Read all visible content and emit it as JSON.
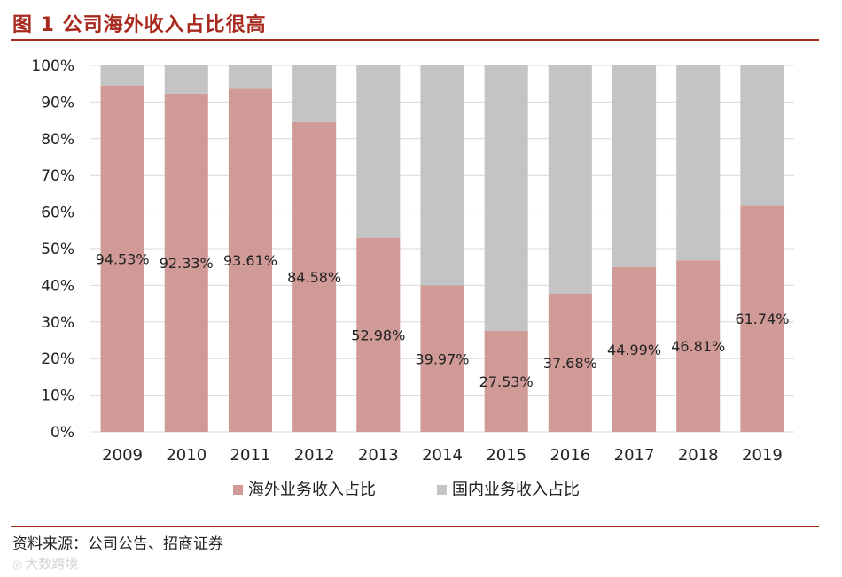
{
  "header": {
    "title": "图 1 公司海外收入占比很高"
  },
  "chart_data": {
    "type": "bar",
    "stacked": true,
    "categories": [
      "2009",
      "2010",
      "2011",
      "2012",
      "2013",
      "2014",
      "2015",
      "2016",
      "2017",
      "2018",
      "2019"
    ],
    "series": [
      {
        "name": "海外业务收入占比",
        "values": [
          94.53,
          92.33,
          93.61,
          84.58,
          52.98,
          39.97,
          27.53,
          37.68,
          44.99,
          46.81,
          61.74
        ],
        "color": "#d09a96"
      },
      {
        "name": "国内业务收入占比",
        "values": [
          5.47,
          7.67,
          6.39,
          15.42,
          47.02,
          60.03,
          72.47,
          62.32,
          55.01,
          53.19,
          38.26
        ],
        "color": "#c4c4c4"
      }
    ],
    "data_labels": [
      "94.53%",
      "92.33%",
      "93.61%",
      "84.58%",
      "52.98%",
      "39.97%",
      "27.53%",
      "37.68%",
      "44.99%",
      "46.81%",
      "61.74%"
    ],
    "ylim": [
      0,
      100
    ],
    "yticks": [
      "0%",
      "10%",
      "20%",
      "30%",
      "40%",
      "50%",
      "60%",
      "70%",
      "80%",
      "90%",
      "100%"
    ],
    "grid": true,
    "legend_position": "bottom"
  },
  "footer": {
    "source": "资料来源：公司公告、招商证券",
    "watermark": "大数跨境",
    "watermark_icon": "logo-icon"
  }
}
